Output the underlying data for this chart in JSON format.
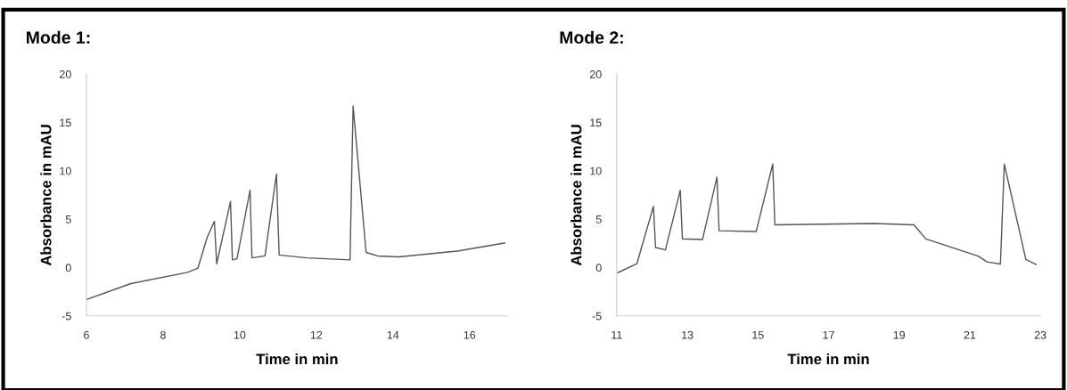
{
  "chart_data": [
    {
      "type": "line",
      "title": "Mode 1:",
      "xlabel": "Time in min",
      "ylabel": "Absorbance in mAU",
      "xlim": [
        6,
        17
      ],
      "xticks": [
        6,
        8,
        10,
        12,
        14,
        16
      ],
      "ylim": [
        -5,
        20
      ],
      "yticks": [
        -5,
        0,
        5,
        10,
        15,
        20
      ],
      "grid": false,
      "legend": false,
      "series": [
        {
          "color": "#555555",
          "x": [
            6.0,
            7.16,
            8.64,
            8.91,
            9.15,
            9.34,
            9.4,
            9.76,
            9.81,
            9.93,
            10.27,
            10.32,
            10.66,
            10.96,
            11.03,
            11.75,
            12.88,
            12.96,
            13.3,
            13.6,
            14.15,
            15.68,
            16.92
          ],
          "values": [
            -3.3,
            -1.66,
            -0.5,
            -0.07,
            3.1,
            4.77,
            0.39,
            6.83,
            0.79,
            0.9,
            8.0,
            1.0,
            1.2,
            9.68,
            1.3,
            1.0,
            0.79,
            16.7,
            1.56,
            1.2,
            1.1,
            1.7,
            2.54
          ]
        }
      ]
    },
    {
      "type": "line",
      "title": "Mode 2:",
      "xlabel": "Time in min",
      "ylabel": "Absorbance in mAU",
      "xlim": [
        11,
        23
      ],
      "xticks": [
        11,
        13,
        15,
        17,
        19,
        21,
        23
      ],
      "ylim": [
        -5,
        20
      ],
      "yticks": [
        -5,
        0,
        5,
        10,
        15,
        20
      ],
      "grid": false,
      "legend": false,
      "series": [
        {
          "color": "#555555",
          "x": [
            11.03,
            11.57,
            12.04,
            12.1,
            12.38,
            12.8,
            12.86,
            13.43,
            13.84,
            13.9,
            14.95,
            15.42,
            15.48,
            18.28,
            19.42,
            19.76,
            21.24,
            21.49,
            21.87,
            21.98,
            22.59,
            22.88
          ],
          "values": [
            -0.53,
            0.39,
            6.32,
            2.07,
            1.82,
            7.99,
            2.97,
            2.9,
            9.35,
            3.81,
            3.72,
            10.7,
            4.41,
            4.56,
            4.41,
            2.95,
            1.18,
            0.58,
            0.37,
            10.7,
            0.83,
            0.32
          ]
        }
      ]
    }
  ]
}
